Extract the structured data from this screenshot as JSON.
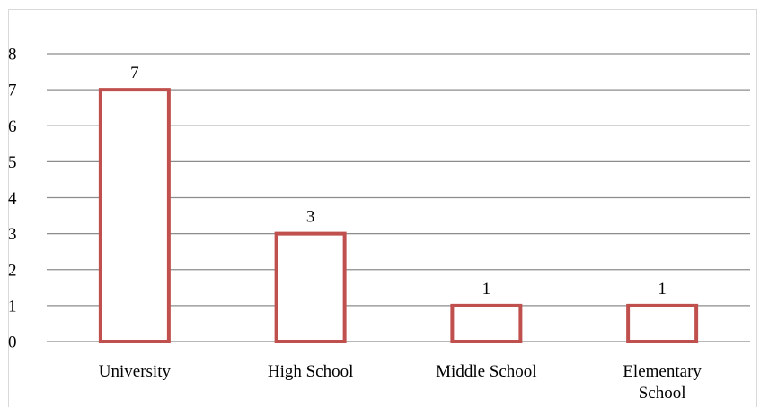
{
  "chart_data": {
    "type": "bar",
    "categories": [
      "University",
      "High School",
      "Middle School",
      "Elementary School"
    ],
    "category_lines": [
      [
        "University"
      ],
      [
        "High School"
      ],
      [
        "Middle School"
      ],
      [
        "Elementary",
        "School"
      ]
    ],
    "values": [
      7,
      3,
      1,
      1
    ],
    "data_labels": [
      "7",
      "3",
      "1",
      "1"
    ],
    "ylim": [
      0,
      8
    ],
    "yticks": [
      0,
      1,
      2,
      3,
      4,
      5,
      6,
      7,
      8
    ],
    "grid": true,
    "legend": "none",
    "title": "",
    "xlabel": "",
    "ylabel": "",
    "colors": {
      "bar_stroke": "#c0504d",
      "bar_fill": "#ffffff",
      "grid": "#8c8c8c"
    }
  }
}
